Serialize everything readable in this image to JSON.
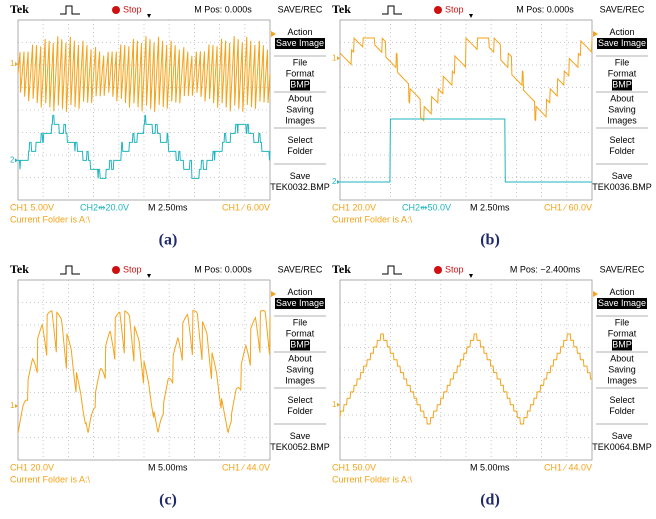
{
  "panels": [
    {
      "label": "(a)",
      "header": {
        "brand": "Tek",
        "status": "Stop",
        "position": "M Pos: 0.000s",
        "mode": "SAVE/REC"
      },
      "menu": [
        {
          "lines": [
            "Action"
          ],
          "value": "Save Image"
        },
        {
          "lines": [
            "File",
            "Format"
          ],
          "value": "BMP"
        },
        {
          "lines": [
            "About",
            "Saving",
            "Images"
          ]
        },
        {
          "lines": [
            "Select",
            "Folder"
          ]
        },
        {
          "lines": [
            "Save"
          ],
          "value": "TEK0032.BMP"
        }
      ],
      "channels": [
        "1",
        "2"
      ],
      "footer": {
        "ch1": "CH1  5.00V",
        "ch2": "CH2⇹20.0V",
        "timebase": "M 2.50ms",
        "trigger": "CH1 ∕ 6.00V",
        "folder": "Current Folder is A:\\"
      }
    },
    {
      "label": "(b)",
      "header": {
        "brand": "Tek",
        "status": "Stop",
        "position": "M Pos: 0.000s",
        "mode": "SAVE/REC"
      },
      "menu": [
        {
          "lines": [
            "Action"
          ],
          "value": "Save Image"
        },
        {
          "lines": [
            "File",
            "Format"
          ],
          "value": "BMP"
        },
        {
          "lines": [
            "About",
            "Saving",
            "Images"
          ]
        },
        {
          "lines": [
            "Select",
            "Folder"
          ]
        },
        {
          "lines": [
            "Save"
          ],
          "value": "TEK0036.BMP"
        }
      ],
      "channels": [
        "1",
        "2"
      ],
      "footer": {
        "ch1": "CH1  20.0V",
        "ch2": "CH2⇹50.0V",
        "timebase": "M 2.50ms",
        "trigger": "CH1 ∕ 60.0V",
        "folder": "Current Folder is A:\\"
      }
    },
    {
      "label": "(c)",
      "header": {
        "brand": "Tek",
        "status": "Stop",
        "position": "M Pos: 0.000s",
        "mode": "SAVE/REC"
      },
      "menu": [
        {
          "lines": [
            "Action"
          ],
          "value": "Save Image"
        },
        {
          "lines": [
            "File",
            "Format"
          ],
          "value": "BMP"
        },
        {
          "lines": [
            "About",
            "Saving",
            "Images"
          ]
        },
        {
          "lines": [
            "Select",
            "Folder"
          ]
        },
        {
          "lines": [
            "Save"
          ],
          "value": "TEK0052.BMP"
        }
      ],
      "channels": [
        "1"
      ],
      "footer": {
        "ch1": "CH1  20.0V",
        "timebase": "M 5.00ms",
        "trigger": "CH1 ∕ 44.0V",
        "folder": "Current Folder is A:\\"
      }
    },
    {
      "label": "(d)",
      "header": {
        "brand": "Tek",
        "status": "Stop",
        "position": "M Pos: −2.400ms",
        "mode": "SAVE/REC"
      },
      "menu": [
        {
          "lines": [
            "Action"
          ],
          "value": "Save Image"
        },
        {
          "lines": [
            "File",
            "Format"
          ],
          "value": "BMP"
        },
        {
          "lines": [
            "About",
            "Saving",
            "Images"
          ]
        },
        {
          "lines": [
            "Select",
            "Folder"
          ]
        },
        {
          "lines": [
            "Save"
          ],
          "value": "TEK0064.BMP"
        }
      ],
      "channels": [
        "1"
      ],
      "footer": {
        "ch1": "CH1  50.0V",
        "timebase": "M 5.00ms",
        "trigger": "CH1 ∕ 44.0V",
        "folder": "Current Folder is A:\\"
      }
    }
  ]
}
